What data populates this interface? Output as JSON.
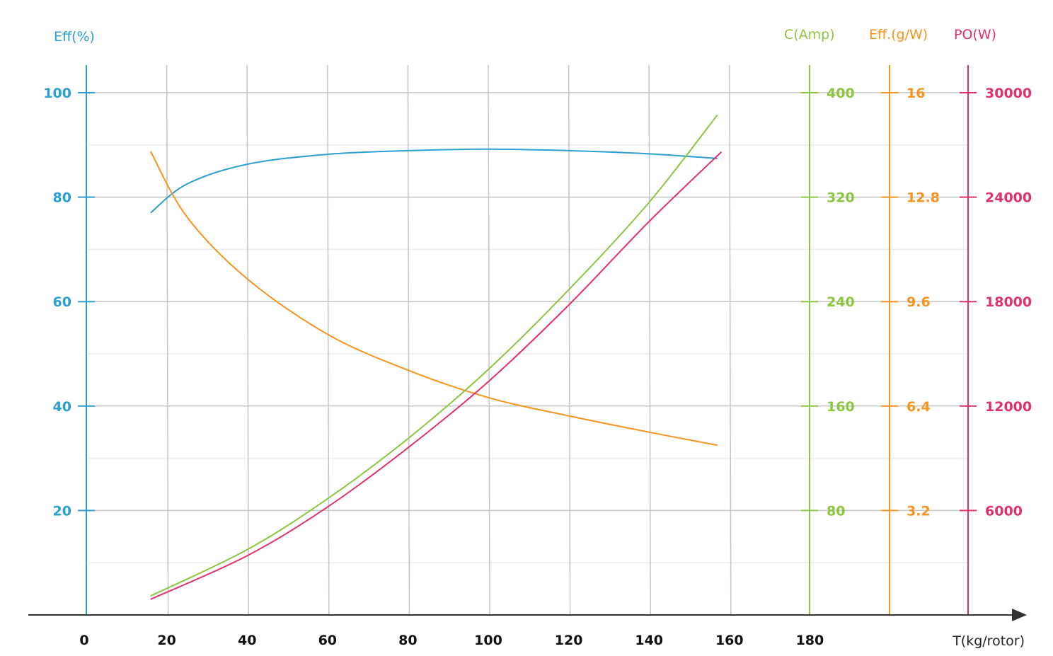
{
  "chart_data": {
    "type": "line",
    "xlabel": "T(kg/rotor)",
    "x_ticks": [
      0,
      20,
      40,
      60,
      80,
      100,
      120,
      140,
      160,
      180
    ],
    "xlim": [
      0,
      180
    ],
    "grid": true,
    "axes": [
      {
        "id": "eff_pct",
        "label": "Eff(%)",
        "color": "#2a9fd0",
        "ylim": [
          0,
          100
        ],
        "ticks": [
          20,
          40,
          60,
          80,
          100
        ],
        "tick_labels": [
          "20",
          "40",
          "60",
          "80",
          "100"
        ],
        "position": "left"
      },
      {
        "id": "amp",
        "label": "C(Amp)",
        "color": "#8cc63f",
        "ylim": [
          0,
          400
        ],
        "ticks": [
          80,
          160,
          240,
          320,
          400
        ],
        "tick_labels": [
          "80",
          "160",
          "240",
          "320",
          "400"
        ],
        "position": "right-1"
      },
      {
        "id": "gw",
        "label": "Eff.(g/W)",
        "color": "#f7941d",
        "ylim": [
          0,
          16
        ],
        "ticks": [
          3.2,
          6.4,
          9.6,
          12.8,
          16
        ],
        "tick_labels": [
          "3.2",
          "6.4",
          "9.6",
          "12.8",
          "16"
        ],
        "position": "right-2"
      },
      {
        "id": "watt",
        "label": "PO(W)",
        "color": "#e0306e",
        "ylim": [
          0,
          30000
        ],
        "ticks": [
          6000,
          12000,
          18000,
          24000,
          30000
        ],
        "tick_labels": [
          "6000",
          "12000",
          "18000",
          "24000",
          "30000"
        ],
        "position": "right-3"
      }
    ],
    "series": [
      {
        "name": "Eff(%)",
        "axis": "eff_pct",
        "color": "#2a9fd0",
        "x": [
          16,
          25,
          40,
          60,
          80,
          100,
          120,
          140,
          157
        ],
        "y": [
          77,
          82.5,
          86.3,
          88.2,
          88.9,
          89.2,
          88.9,
          88.3,
          87.4
        ]
      },
      {
        "name": "Eff.(g/W)",
        "axis": "gw",
        "color": "#f7941d",
        "x": [
          16,
          25,
          40,
          60,
          80,
          100,
          120,
          140,
          157
        ],
        "y": [
          14.2,
          12.2,
          10.3,
          8.6,
          7.5,
          6.66,
          6.1,
          5.6,
          5.2
        ]
      },
      {
        "name": "C(Amp)",
        "axis": "amp",
        "color": "#8cc63f",
        "x": [
          16,
          40,
          60,
          80,
          100,
          120,
          140,
          157
        ],
        "y": [
          14.6,
          50,
          89,
          135,
          188,
          249,
          316,
          383
        ]
      },
      {
        "name": "PO(W)",
        "axis": "watt",
        "color": "#e0306e",
        "x": [
          16,
          40,
          60,
          80,
          100,
          120,
          140,
          158
        ],
        "y": [
          900,
          3400,
          6200,
          9600,
          13400,
          17800,
          22600,
          26600
        ]
      }
    ]
  }
}
